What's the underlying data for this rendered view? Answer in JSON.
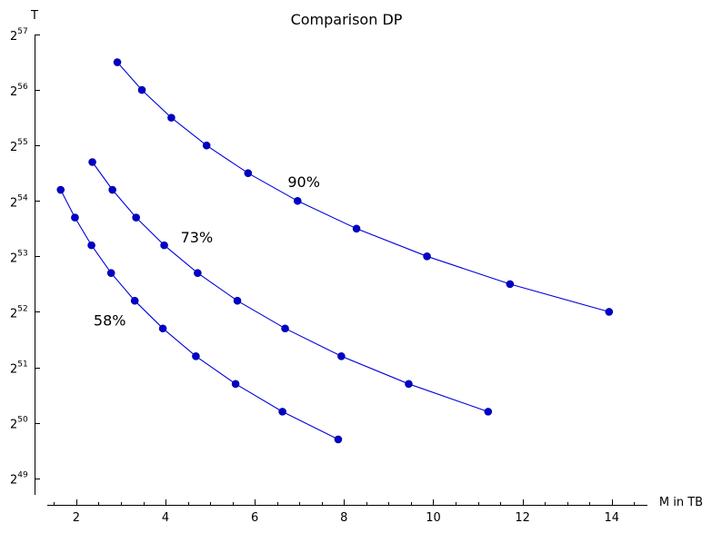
{
  "chart_data": {
    "type": "line",
    "title": "Comparison DP",
    "xlabel": "M in TB",
    "ylabel": "T",
    "xlim": [
      1.35,
      14.8
    ],
    "ylim": [
      48.7,
      57
    ],
    "y_scale": "log2",
    "x_ticks": [
      2,
      4,
      6,
      8,
      10,
      12,
      14
    ],
    "x_minor_step": 0.5,
    "y_ticks": [
      49,
      50,
      51,
      52,
      53,
      54,
      55,
      56,
      57
    ],
    "y_tick_base": "2",
    "grid": false,
    "color": "#0000cc",
    "series": [
      {
        "label": "90%",
        "x": [
          2.92,
          3.47,
          4.13,
          4.92,
          5.85,
          6.96,
          8.28,
          9.86,
          11.72,
          13.94
        ],
        "y": [
          56.5,
          56.0,
          55.5,
          55.0,
          54.5,
          54.0,
          53.5,
          53.0,
          52.5,
          52.0
        ]
      },
      {
        "label": "73%",
        "x": [
          2.36,
          2.81,
          3.34,
          3.97,
          4.72,
          5.61,
          6.68,
          7.94,
          9.45,
          11.23
        ],
        "y": [
          54.7,
          54.2,
          53.7,
          53.2,
          52.7,
          52.2,
          51.7,
          51.2,
          50.7,
          50.2
        ]
      },
      {
        "label": "58%",
        "x": [
          1.65,
          1.97,
          2.34,
          2.78,
          3.31,
          3.94,
          4.68,
          5.57,
          6.62,
          7.87
        ],
        "y": [
          54.2,
          53.7,
          53.2,
          52.7,
          52.2,
          51.7,
          51.2,
          50.7,
          50.2,
          49.7
        ]
      }
    ],
    "annotations": [
      {
        "text": "90%",
        "x": 7.1,
        "y": 54.35
      },
      {
        "text": "73%",
        "x": 4.7,
        "y": 53.35
      },
      {
        "text": "58%",
        "x": 2.75,
        "y": 51.85
      }
    ]
  }
}
